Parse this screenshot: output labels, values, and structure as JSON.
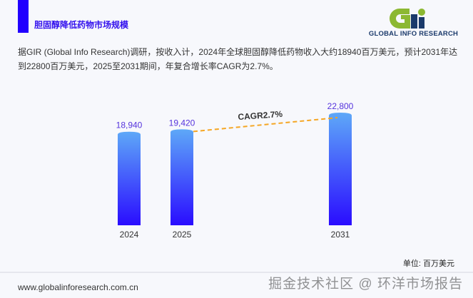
{
  "header": {
    "title": "胆固醇降低药物市场规模",
    "logo_text": "GLOBAL INFO RESEARCH",
    "logo_mark": "Gi"
  },
  "description": "据GIR (Global Info Research)调研，按收入计，2024年全球胆固醇降低药物收入大约18940百万美元，预计2031年达到22800百万美元，2025至2031期间，年复合增长率CAGR为2.7%。",
  "chart_data": {
    "type": "bar",
    "categories": [
      "2024",
      "2025",
      "2031"
    ],
    "values": [
      18940,
      19420,
      22800
    ],
    "data_labels": [
      "18,940",
      "19,420",
      "22,800"
    ],
    "annotation": "CAGR2.7%",
    "unit_label": "单位: 百万美元",
    "colors": {
      "bar_top": "#5ea8f8",
      "bar_bottom": "#2a0cff",
      "label": "#5533dd",
      "cagr_line": "#f5a623"
    }
  },
  "footer": {
    "url": "www.globalinforesearch.com.cn",
    "watermark": "掘金技术社区 @ 环洋市场报告"
  }
}
